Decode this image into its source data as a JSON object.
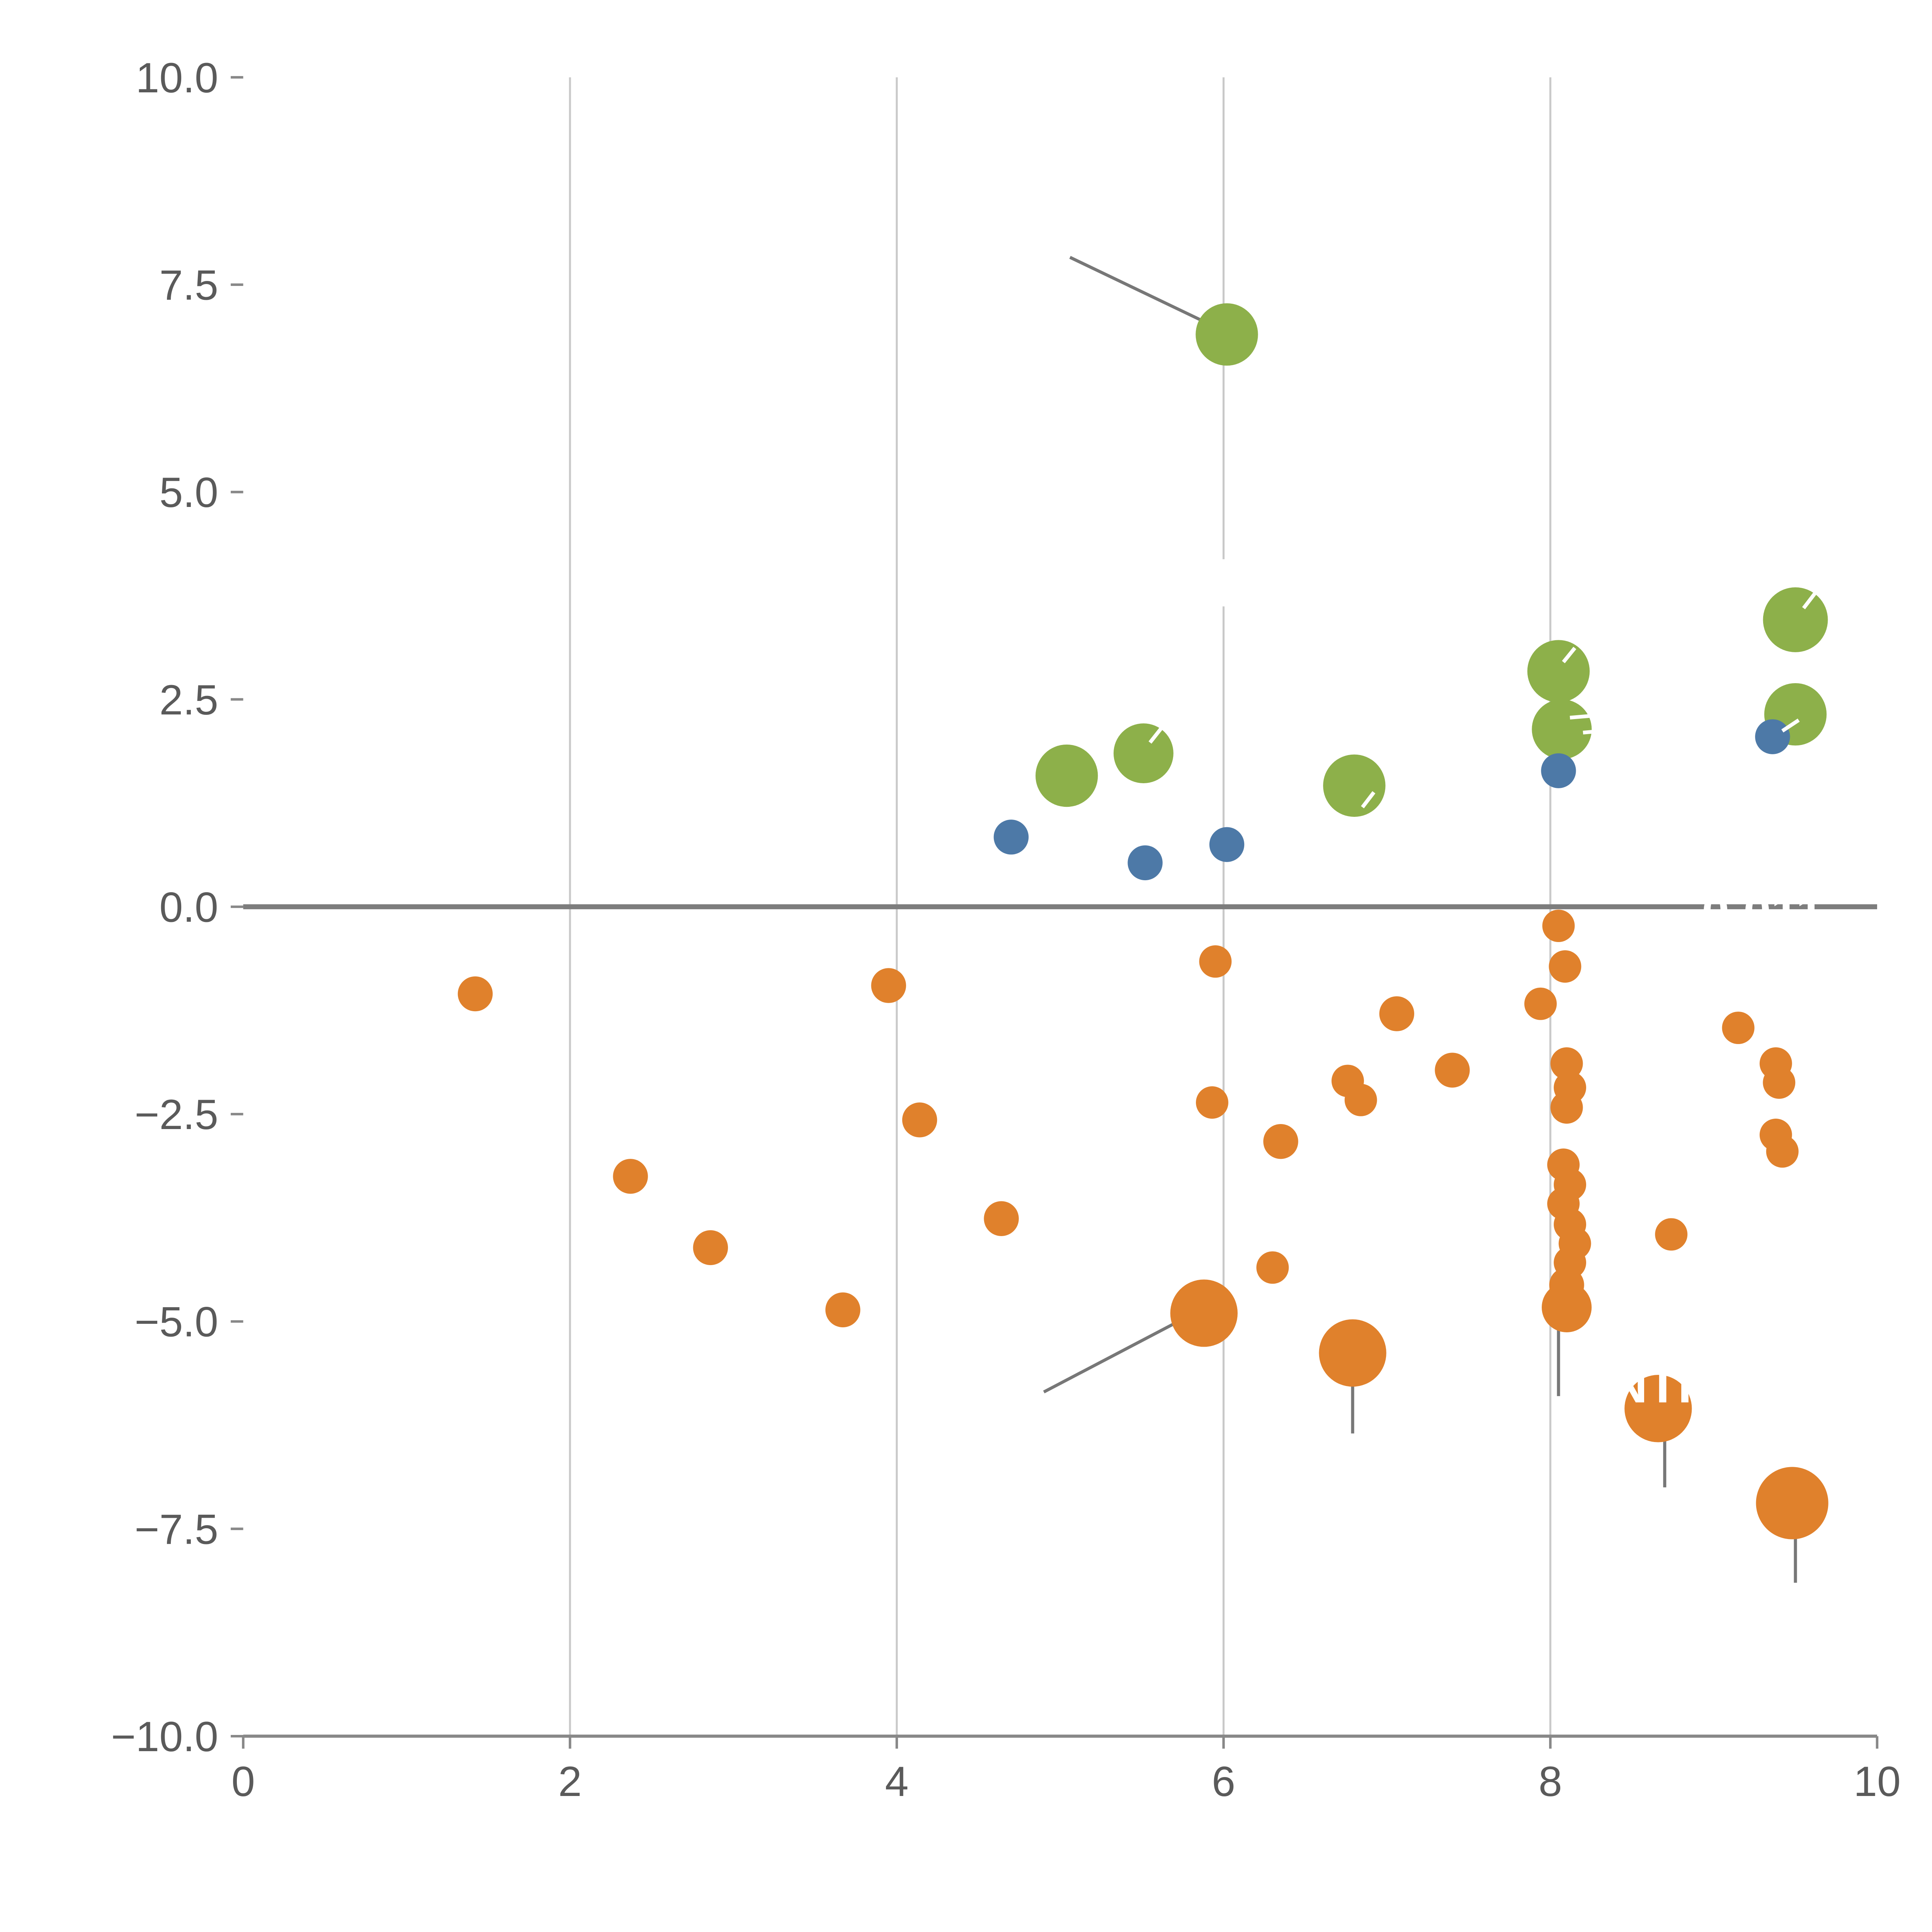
{
  "page": {
    "background": "#ffffff"
  },
  "chart_data": {
    "type": "scatter",
    "title": "",
    "subtitle": "",
    "xlabel": "",
    "ylabel": "",
    "xlim": [
      0,
      10
    ],
    "ylim": [
      -10,
      10
    ],
    "grid": "vertical-only",
    "legend": "none",
    "x_ticks": [
      0,
      2,
      4,
      6,
      8,
      10
    ],
    "x_tick_labels": [
      "0",
      "2",
      "4",
      "6",
      "8",
      "10"
    ],
    "y_ticks": [
      -10,
      -7.5,
      -5,
      -2.5,
      0,
      2.5,
      5,
      7.5,
      10
    ],
    "y_tick_labels": [
      "−10.0",
      "−7.5",
      "−5.0",
      "−2.5",
      "0.0",
      "2.5",
      "5.0",
      "7.5",
      "10.0"
    ],
    "grid_x": [
      2,
      4,
      6,
      8
    ],
    "zero_line_y": 0,
    "colors": {
      "blue": "#4d79a7",
      "green": "#8db04a",
      "orange": "#e0812c",
      "grid": "#c9c9c9",
      "axis": "#888888",
      "zero_line": "#7d7d7d",
      "tick_label": "#5a5a5a",
      "segment": "#777777",
      "annotation": "#ffffff"
    },
    "series": [
      {
        "name": "orange",
        "color_key": "orange",
        "points": [
          {
            "x": 1.42,
            "y": -1.05,
            "r": 14
          },
          {
            "x": 3.95,
            "y": -0.95,
            "r": 14
          },
          {
            "x": 5.95,
            "y": -0.66,
            "r": 13
          },
          {
            "x": 8.05,
            "y": -0.23,
            "r": 13
          },
          {
            "x": 8.09,
            "y": -0.72,
            "r": 13
          },
          {
            "x": 7.06,
            "y": -1.29,
            "r": 14
          },
          {
            "x": 7.94,
            "y": -1.17,
            "r": 13
          },
          {
            "x": 9.15,
            "y": -1.46,
            "r": 13
          },
          {
            "x": 7.4,
            "y": -1.97,
            "r": 14
          },
          {
            "x": 6.76,
            "y": -2.1,
            "r": 13
          },
          {
            "x": 6.84,
            "y": -2.33,
            "r": 13
          },
          {
            "x": 5.93,
            "y": -2.36,
            "r": 13
          },
          {
            "x": 9.38,
            "y": -1.89,
            "r": 13
          },
          {
            "x": 9.4,
            "y": -2.12,
            "r": 13
          },
          {
            "x": 4.14,
            "y": -2.57,
            "r": 14
          },
          {
            "x": 6.35,
            "y": -2.83,
            "r": 14
          },
          {
            "x": 9.38,
            "y": -2.75,
            "r": 13
          },
          {
            "x": 9.42,
            "y": -2.95,
            "r": 13
          },
          {
            "x": 2.37,
            "y": -3.25,
            "r": 14
          },
          {
            "x": 4.64,
            "y": -3.76,
            "r": 14
          },
          {
            "x": 2.86,
            "y": -4.11,
            "r": 14
          },
          {
            "x": 3.67,
            "y": -4.86,
            "r": 14
          },
          {
            "x": 6.3,
            "y": -4.35,
            "r": 13
          },
          {
            "x": 8.74,
            "y": -3.95,
            "r": 13
          },
          {
            "x": 8.1,
            "y": -1.89,
            "r": 13
          },
          {
            "x": 8.12,
            "y": -2.18,
            "r": 13
          },
          {
            "x": 8.1,
            "y": -2.42,
            "r": 13
          },
          {
            "x": 8.08,
            "y": -3.11,
            "r": 13
          },
          {
            "x": 8.12,
            "y": -3.35,
            "r": 13
          },
          {
            "x": 8.08,
            "y": -3.58,
            "r": 13
          },
          {
            "x": 8.12,
            "y": -3.83,
            "r": 13
          },
          {
            "x": 8.15,
            "y": -4.06,
            "r": 13
          },
          {
            "x": 8.12,
            "y": -4.29,
            "r": 13
          },
          {
            "x": 8.1,
            "y": -4.56,
            "r": 14
          },
          {
            "x": 8.1,
            "y": -4.83,
            "r": 20
          },
          {
            "x": 5.88,
            "y": -4.9,
            "r": 27
          },
          {
            "x": 6.79,
            "y": -5.38,
            "r": 27
          },
          {
            "x": 8.66,
            "y": -6.05,
            "r": 27
          },
          {
            "x": 9.48,
            "y": -7.19,
            "r": 29
          }
        ]
      },
      {
        "name": "green",
        "color_key": "green",
        "points": [
          {
            "x": 6.02,
            "y": 6.9,
            "r": 25
          },
          {
            "x": 9.5,
            "y": 3.46,
            "r": 26
          },
          {
            "x": 8.05,
            "y": 2.84,
            "r": 25
          },
          {
            "x": 9.5,
            "y": 2.32,
            "r": 25
          },
          {
            "x": 8.07,
            "y": 2.14,
            "r": 24
          },
          {
            "x": 5.51,
            "y": 1.85,
            "r": 24
          },
          {
            "x": 5.04,
            "y": 1.58,
            "r": 25
          },
          {
            "x": 6.8,
            "y": 1.46,
            "r": 25
          }
        ]
      },
      {
        "name": "blue",
        "color_key": "blue",
        "points": [
          {
            "x": 4.7,
            "y": 0.84,
            "r": 14
          },
          {
            "x": 5.52,
            "y": 0.53,
            "r": 14
          },
          {
            "x": 6.02,
            "y": 0.75,
            "r": 14
          },
          {
            "x": 8.05,
            "y": 1.64,
            "r": 14
          },
          {
            "x": 9.36,
            "y": 2.05,
            "r": 14
          }
        ]
      }
    ],
    "segments": [
      {
        "x1": 5.06,
        "y1": 7.83,
        "x2": 5.95,
        "y2": 6.99
      },
      {
        "x1": 4.9,
        "y1": -5.85,
        "x2": 5.82,
        "y2": -4.9
      },
      {
        "x1": 6.79,
        "y1": -5.6,
        "x2": 6.79,
        "y2": -6.35
      },
      {
        "x1": 8.05,
        "y1": -5.05,
        "x2": 8.05,
        "y2": -5.9
      },
      {
        "x1": 8.7,
        "y1": -6.2,
        "x2": 8.7,
        "y2": -7.0
      },
      {
        "x1": 9.5,
        "y1": -7.4,
        "x2": 9.5,
        "y2": -8.15
      }
    ],
    "bubble_ticks": [
      {
        "x1": 5.55,
        "y1": 1.98,
        "x2": 5.63,
        "y2": 2.18
      },
      {
        "x1": 8.08,
        "y1": 2.95,
        "x2": 8.15,
        "y2": 3.12
      },
      {
        "x1": 9.55,
        "y1": 3.6,
        "x2": 9.62,
        "y2": 3.78
      },
      {
        "x1": 6.85,
        "y1": 1.2,
        "x2": 6.92,
        "y2": 1.38
      },
      {
        "x1": 8.12,
        "y1": 2.28,
        "x2": 8.24,
        "y2": 2.3
      },
      {
        "x1": 8.2,
        "y1": 2.1,
        "x2": 8.32,
        "y2": 2.12
      },
      {
        "x1": 9.42,
        "y1": 2.12,
        "x2": 9.52,
        "y2": 2.25
      },
      {
        "x1": 6.9,
        "y1": 1.05,
        "x2": 7.0,
        "y2": 1.08
      }
    ],
    "annotations": [
      {
        "x": 5.99,
        "y": 3.95,
        "text": "|"
      },
      {
        "x": 9.3,
        "y": -0.08,
        "text": "0.011"
      },
      {
        "x": 8.62,
        "y": -5.78,
        "text": "NTI"
      }
    ]
  }
}
